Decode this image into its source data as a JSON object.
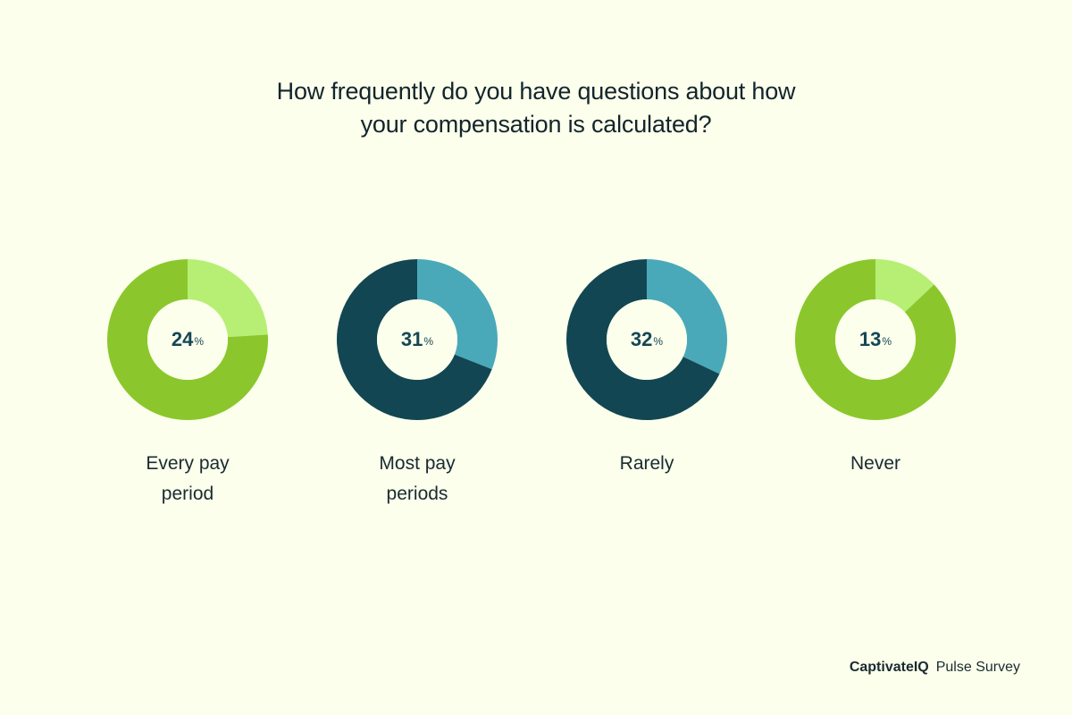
{
  "title": {
    "line1": "How frequently do you have questions about how",
    "line2": "your compensation is calculated?"
  },
  "footer": {
    "brand": "CaptivateIQ",
    "product": "Pulse Survey"
  },
  "colors": {
    "background": "#fbffec",
    "green_dark": "#8bc72c",
    "green_light": "#b6ef74",
    "teal_dark": "#134653",
    "teal_light": "#4aa9b8",
    "text_dark": "#154654"
  },
  "charts": [
    {
      "value": "24",
      "unit": "%",
      "label_line1": "Every pay",
      "label_line2": "period"
    },
    {
      "value": "31",
      "unit": "%",
      "label_line1": "Most pay",
      "label_line2": "periods"
    },
    {
      "value": "32",
      "unit": "%",
      "label_line1": "Rarely",
      "label_line2": ""
    },
    {
      "value": "13",
      "unit": "%",
      "label_line1": "Never",
      "label_line2": ""
    }
  ],
  "chart_data": {
    "type": "pie",
    "title": "How frequently do you have questions about how your compensation is calculated?",
    "categories": [
      "Every pay period",
      "Most pay periods",
      "Rarely",
      "Never"
    ],
    "values": [
      24,
      31,
      32,
      13
    ],
    "unit": "%",
    "subtype": "donut (one per category)",
    "legend": "none",
    "source": "CaptivateIQ Pulse Survey"
  }
}
